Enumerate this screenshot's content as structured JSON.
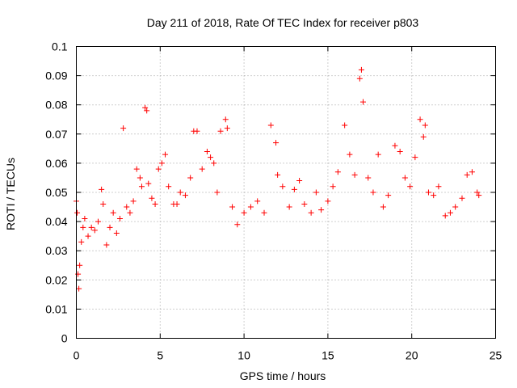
{
  "chart_data": {
    "type": "scatter",
    "title": "Day 211 of 2018, Rate Of TEC Index for receiver p803",
    "xlabel": "GPS time / hours",
    "ylabel": "ROTI / TECUs",
    "xlim": [
      0,
      25
    ],
    "ylim": [
      0,
      0.1
    ],
    "xticks": [
      "0",
      "5",
      "10",
      "15",
      "20",
      "25"
    ],
    "yticks": [
      "0",
      "0.01",
      "0.02",
      "0.03",
      "0.04",
      "0.05",
      "0.06",
      "0.07",
      "0.08",
      "0.09",
      "0.1"
    ],
    "grid": true,
    "legend": "none",
    "marker": "+",
    "color": "#ff0000",
    "series": [
      {
        "x": [
          0.0,
          0.05,
          0.1,
          0.15,
          0.2,
          0.3,
          0.4,
          0.5,
          0.7,
          0.9,
          1.1,
          1.3,
          1.5,
          1.6,
          1.8,
          2.0,
          2.2,
          2.4,
          2.6,
          2.8,
          3.0,
          3.2,
          3.4,
          3.6,
          3.8,
          3.9,
          4.1,
          4.2,
          4.3,
          4.5,
          4.7,
          4.9,
          5.1,
          5.3,
          5.5,
          5.8,
          6.0,
          6.2,
          6.5,
          6.8,
          7.0,
          7.2,
          7.5,
          7.8,
          8.0,
          8.2,
          8.4,
          8.6,
          8.9,
          9.0,
          9.3,
          9.6,
          10.0,
          10.4,
          10.8,
          11.2,
          11.6,
          11.9,
          12.0,
          12.3,
          12.7,
          13.0,
          13.3,
          13.6,
          14.0,
          14.3,
          14.6,
          15.0,
          15.3,
          15.6,
          16.0,
          16.3,
          16.6,
          16.9,
          17.0,
          17.1,
          17.4,
          17.7,
          18.0,
          18.3,
          18.6,
          19.0,
          19.3,
          19.6,
          19.9,
          20.2,
          20.5,
          20.7,
          20.8,
          21.0,
          21.3,
          21.6,
          22.0,
          22.3,
          22.6,
          23.0,
          23.3,
          23.6,
          23.9,
          24.0
        ],
        "y": [
          0.047,
          0.043,
          0.022,
          0.017,
          0.025,
          0.033,
          0.038,
          0.041,
          0.035,
          0.038,
          0.037,
          0.04,
          0.051,
          0.046,
          0.032,
          0.038,
          0.043,
          0.036,
          0.041,
          0.072,
          0.045,
          0.043,
          0.047,
          0.058,
          0.055,
          0.052,
          0.079,
          0.078,
          0.053,
          0.048,
          0.046,
          0.058,
          0.06,
          0.063,
          0.052,
          0.046,
          0.046,
          0.05,
          0.049,
          0.055,
          0.071,
          0.071,
          0.058,
          0.064,
          0.062,
          0.06,
          0.05,
          0.071,
          0.075,
          0.072,
          0.045,
          0.039,
          0.043,
          0.045,
          0.047,
          0.043,
          0.073,
          0.067,
          0.056,
          0.052,
          0.045,
          0.051,
          0.054,
          0.046,
          0.043,
          0.05,
          0.044,
          0.047,
          0.052,
          0.057,
          0.073,
          0.063,
          0.056,
          0.089,
          0.092,
          0.081,
          0.055,
          0.05,
          0.063,
          0.045,
          0.049,
          0.066,
          0.064,
          0.055,
          0.052,
          0.062,
          0.075,
          0.069,
          0.073,
          0.05,
          0.049,
          0.052,
          0.042,
          0.043,
          0.045,
          0.048,
          0.056,
          0.057,
          0.05,
          0.049
        ]
      }
    ]
  }
}
